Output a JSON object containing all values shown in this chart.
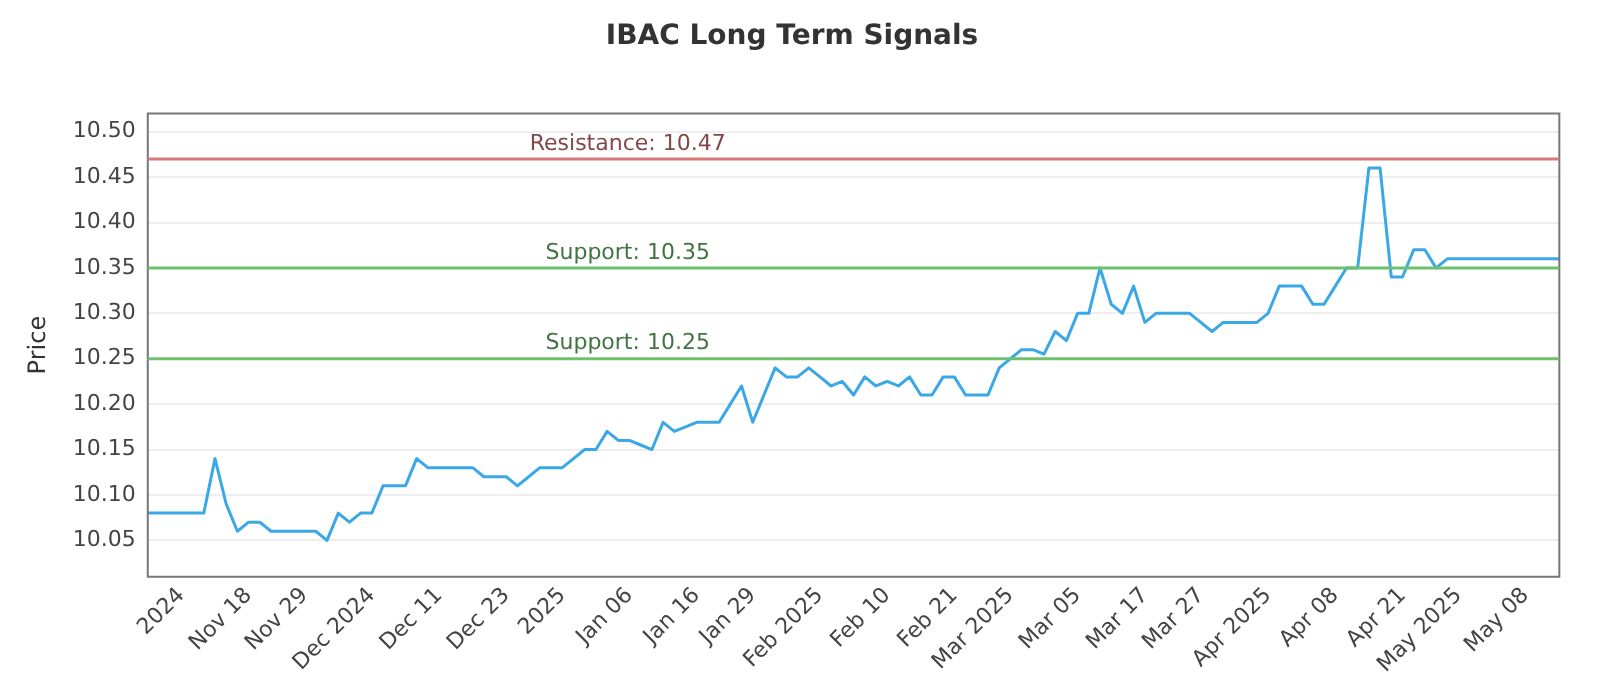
{
  "chart_data": {
    "type": "line",
    "title": "IBAC Long Term Signals",
    "ylabel": "Price",
    "categories": [
      null,
      null,
      null,
      "2024",
      null,
      null,
      null,
      null,
      null,
      "Nov 18",
      null,
      null,
      null,
      null,
      "Nov 29",
      null,
      null,
      null,
      null,
      null,
      "Dec 2024",
      null,
      null,
      null,
      null,
      null,
      "Dec 11",
      null,
      null,
      null,
      null,
      null,
      "Dec 23",
      null,
      null,
      null,
      null,
      "2025",
      null,
      null,
      null,
      null,
      null,
      "Jan 06",
      null,
      null,
      null,
      null,
      null,
      "Jan 16",
      null,
      null,
      null,
      null,
      "Jan 29",
      null,
      null,
      null,
      null,
      null,
      "Feb 2025",
      null,
      null,
      null,
      null,
      null,
      "Feb 10",
      null,
      null,
      null,
      null,
      null,
      "Feb 21",
      null,
      null,
      null,
      null,
      "Mar 2025",
      null,
      null,
      null,
      null,
      null,
      "Mar 05",
      null,
      null,
      null,
      null,
      null,
      "Mar 17",
      null,
      null,
      null,
      null,
      "Mar 27",
      null,
      null,
      null,
      null,
      null,
      "Apr 2025",
      null,
      null,
      null,
      null,
      null,
      "Apr 08",
      null,
      null,
      null,
      null,
      null,
      "Apr 21",
      null,
      null,
      null,
      null,
      "May 2025",
      null,
      null,
      null,
      null,
      null,
      "May 08",
      null,
      null,
      null
    ],
    "series": [
      {
        "color": "#3aa8e6",
        "values": [
          10.08,
          10.08,
          10.08,
          10.08,
          10.08,
          10.08,
          10.14,
          10.09,
          10.06,
          10.07,
          10.07,
          10.06,
          10.06,
          10.06,
          10.06,
          10.06,
          10.05,
          10.08,
          10.07,
          10.08,
          10.08,
          10.11,
          10.11,
          10.11,
          10.14,
          10.13,
          10.13,
          10.13,
          10.13,
          10.13,
          10.12,
          10.12,
          10.12,
          10.11,
          10.12,
          10.13,
          10.13,
          10.13,
          10.14,
          10.15,
          10.15,
          10.17,
          10.16,
          10.16,
          10.155,
          10.15,
          10.18,
          10.17,
          10.175,
          10.18,
          10.18,
          10.18,
          10.2,
          10.22,
          10.18,
          10.21,
          10.24,
          10.23,
          10.23,
          10.24,
          10.23,
          10.22,
          10.225,
          10.21,
          10.23,
          10.22,
          10.225,
          10.22,
          10.23,
          10.21,
          10.21,
          10.23,
          10.23,
          10.21,
          10.21,
          10.21,
          10.24,
          10.25,
          10.26,
          10.26,
          10.255,
          10.28,
          10.27,
          10.3,
          10.3,
          10.35,
          10.31,
          10.3,
          10.33,
          10.29,
          10.3,
          10.3,
          10.3,
          10.3,
          10.29,
          10.28,
          10.29,
          10.29,
          10.29,
          10.29,
          10.3,
          10.33,
          10.33,
          10.33,
          10.31,
          10.31,
          10.33,
          10.35,
          10.35,
          10.46,
          10.46,
          10.34,
          10.34,
          10.37,
          10.37,
          10.35,
          10.36,
          10.36,
          10.36,
          10.36,
          10.36,
          10.36,
          10.36,
          10.36,
          10.36,
          10.36,
          10.36
        ]
      }
    ],
    "ylim": [
      10.01,
      10.52
    ],
    "yticks": [
      10.05,
      {
        "value": 10.1,
        "label": "10.10"
      },
      10.15,
      {
        "value": 10.2,
        "label": "10.20"
      },
      10.25,
      {
        "value": 10.3,
        "label": "10.30"
      },
      10.35,
      {
        "value": 10.4,
        "label": "10.40"
      },
      10.45,
      {
        "value": 10.5,
        "label": "10.50"
      }
    ],
    "ref_lines": [
      {
        "axis": "y",
        "value": 10.47,
        "label": "Resistance: 10.47",
        "color": "#d9787a",
        "line_style": "solid"
      },
      {
        "axis": "y",
        "value": 10.35,
        "label": "Support: 10.35",
        "color": "#6cc26c",
        "line_style": "solid"
      },
      {
        "axis": "y",
        "value": 10.25,
        "label": "Support: 10.25",
        "color": "#70c070",
        "line_style": "solid"
      }
    ],
    "grid": "y",
    "legend": false,
    "marker": "none",
    "line_style": "solid"
  }
}
